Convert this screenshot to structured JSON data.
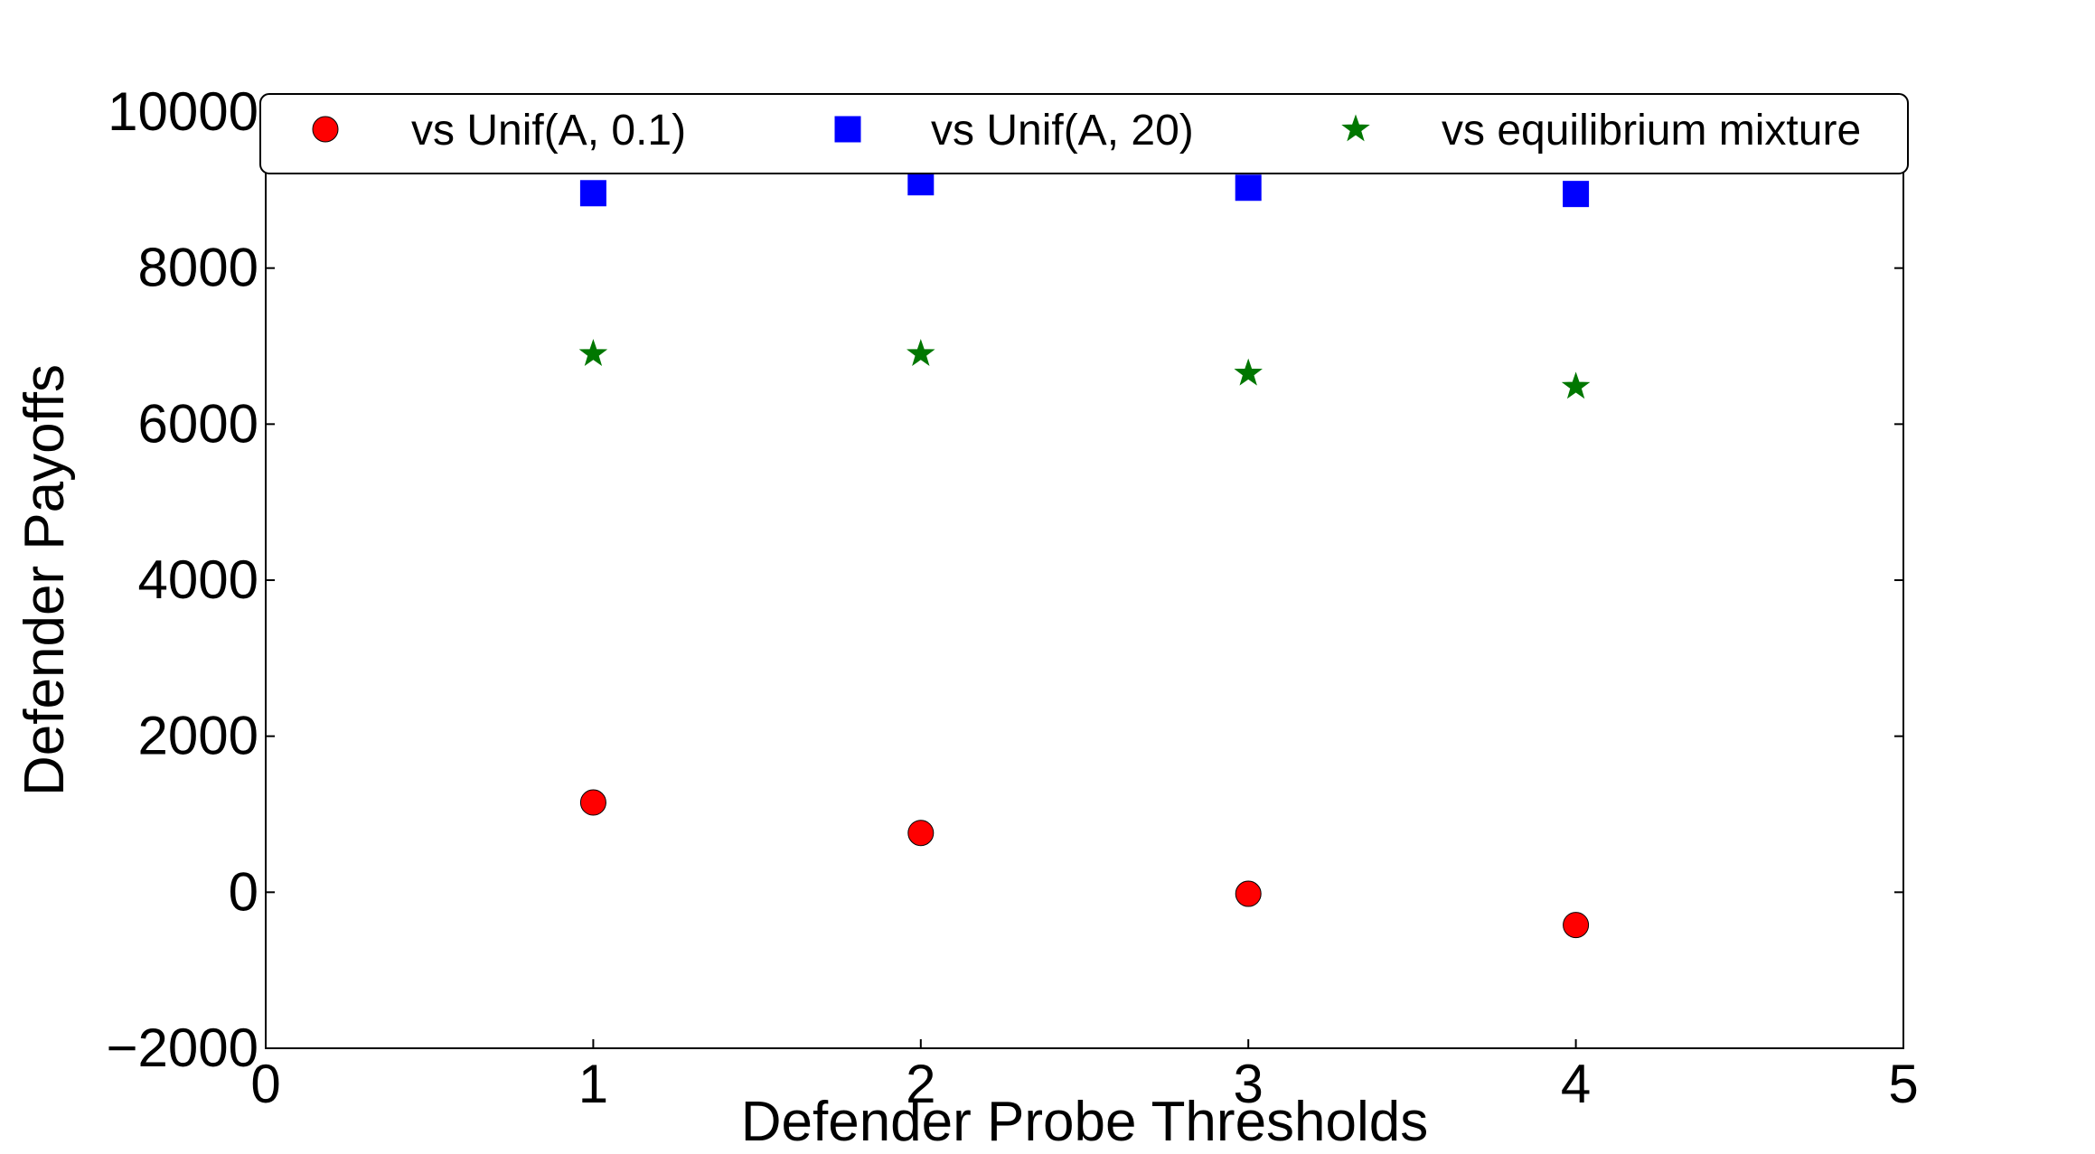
{
  "chart_data": {
    "type": "scatter",
    "title": "",
    "xlabel": "Defender Probe Thresholds",
    "ylabel": "Defender Payoffs",
    "xlim": [
      0,
      5
    ],
    "ylim": [
      -2000,
      10000
    ],
    "xticks": [
      0,
      1,
      2,
      3,
      4,
      5
    ],
    "yticks": [
      -2000,
      0,
      2000,
      4000,
      6000,
      8000,
      10000
    ],
    "xtick_labels": [
      "0",
      "1",
      "2",
      "3",
      "4",
      "5"
    ],
    "ytick_labels": [
      "−2000",
      "0",
      "2000",
      "4000",
      "6000",
      "8000",
      "10000"
    ],
    "grid": false,
    "legend_position": "top",
    "series": [
      {
        "name": "vs Unif(A, 0.1)",
        "marker": "circle",
        "color": "#ff0000",
        "x": [
          1,
          2,
          3,
          4
        ],
        "y": [
          1150,
          760,
          -20,
          -420
        ]
      },
      {
        "name": "vs Unif(A, 20)",
        "marker": "square",
        "color": "#0000ff",
        "x": [
          1,
          2,
          3,
          4
        ],
        "y": [
          8960,
          9100,
          9030,
          8950
        ]
      },
      {
        "name": "vs equilibrium mixture",
        "marker": "star",
        "color": "#007700",
        "x": [
          1,
          2,
          3,
          4
        ],
        "y": [
          6900,
          6900,
          6650,
          6480
        ]
      }
    ]
  }
}
